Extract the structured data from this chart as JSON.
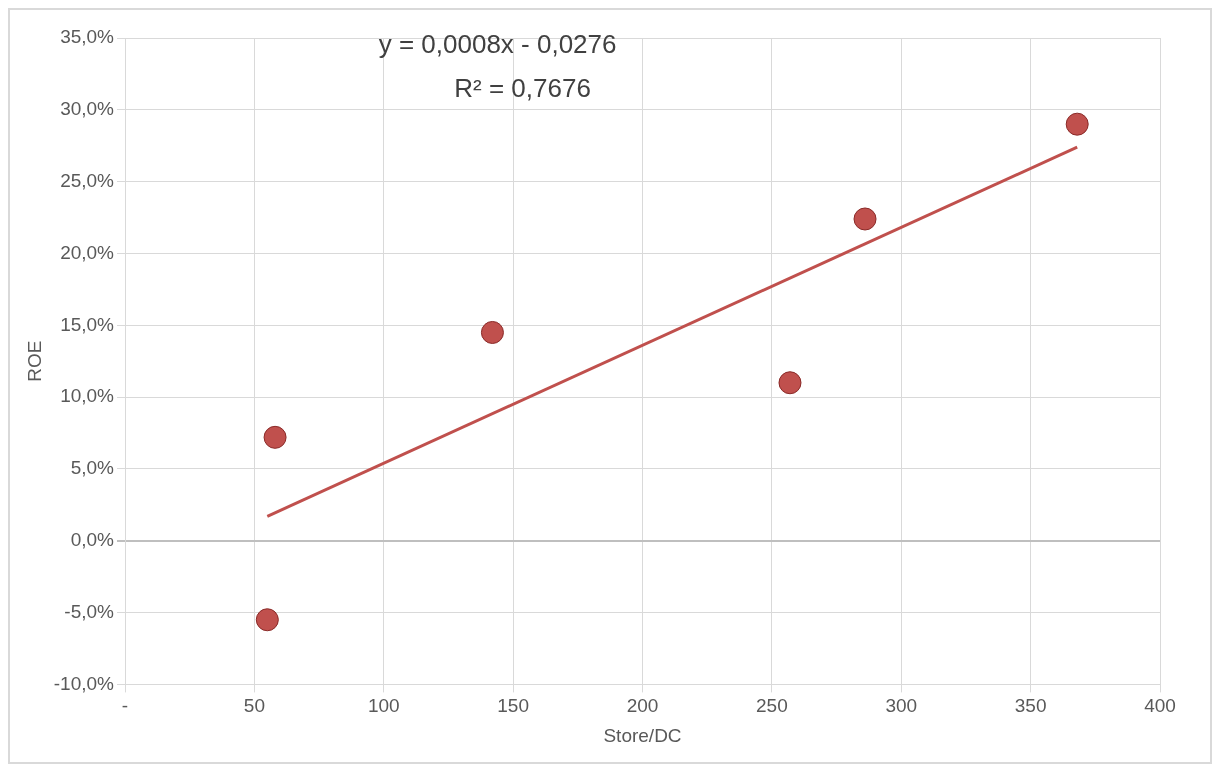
{
  "chart_data": {
    "type": "scatter",
    "xlabel": "Store/DC",
    "ylabel": "ROE",
    "annotations": [
      "y = 0,0008x - 0,0276",
      "R² = 0,7676"
    ],
    "series": [
      {
        "color": "#c0504d",
        "x": [
          58,
          55,
          142,
          257,
          286,
          368
        ],
        "values": [
          7.2,
          -5.5,
          14.5,
          11.0,
          22.4,
          29.0
        ],
        "marker": "circle"
      },
      {
        "type": "line",
        "color": "#c0504d",
        "x": [
          55,
          368
        ],
        "values": [
          1.7,
          27.4
        ],
        "marker": "none",
        "line_style": "solid"
      }
    ],
    "xlim": [
      0,
      400
    ],
    "xticks": [
      {
        "value": 0,
        "label": "-"
      },
      50,
      100,
      150,
      200,
      250,
      300,
      350,
      400
    ],
    "ylim": [
      -10,
      35
    ],
    "yticks": [
      {
        "value": -10,
        "label": "-10,0%"
      },
      {
        "value": -5,
        "label": "-5,0%"
      },
      {
        "value": 0,
        "label": "0,0%"
      },
      {
        "value": 5,
        "label": "5,0%"
      },
      {
        "value": 10,
        "label": "10,0%"
      },
      {
        "value": 15,
        "label": "15,0%"
      },
      {
        "value": 20,
        "label": "20,0%"
      },
      {
        "value": 25,
        "label": "25,0%"
      },
      {
        "value": 30,
        "label": "30,0%"
      },
      {
        "value": 35,
        "label": "35,0%"
      }
    ],
    "grid": true,
    "legend": false
  }
}
